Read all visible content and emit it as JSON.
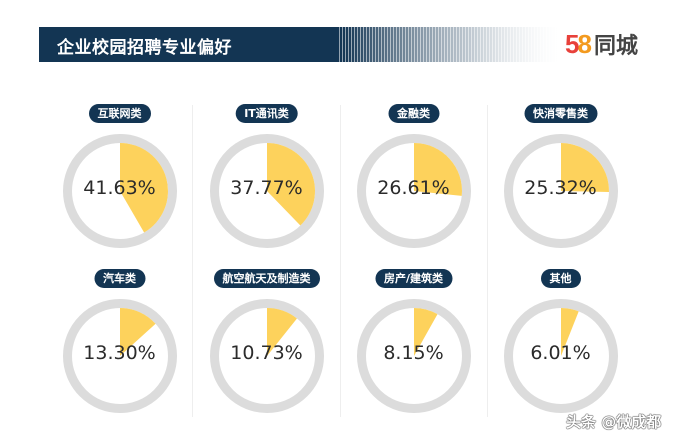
{
  "header": {
    "title": "企业校园招聘专业偏好",
    "banner_color": "#133553",
    "logo": {
      "digit1": "5",
      "digit2": "8",
      "text": "同城"
    }
  },
  "colors": {
    "slice": "#fdd25c",
    "ring": "#dcdcdc",
    "pill": "#133553"
  },
  "chart_data": {
    "type": "pie",
    "title": "企业校园招聘专业偏好",
    "categories": [
      "互联网类",
      "IT通讯类",
      "金融类",
      "快消零售类",
      "汽车类",
      "航空航天及制造类",
      "房产/建筑类",
      "其他"
    ],
    "values": [
      41.63,
      37.77,
      26.61,
      25.32,
      13.3,
      10.73,
      8.15,
      6.01
    ],
    "labels": [
      "41.63%",
      "37.77%",
      "26.61%",
      "25.32%",
      "13.30%",
      "10.73%",
      "8.15%",
      "6.01%"
    ],
    "unit": "%",
    "layout": "small multiples, 2 rows x 4 columns, each a single-slice pie inside a gray ring"
  },
  "watermark": "头条 @微成都"
}
